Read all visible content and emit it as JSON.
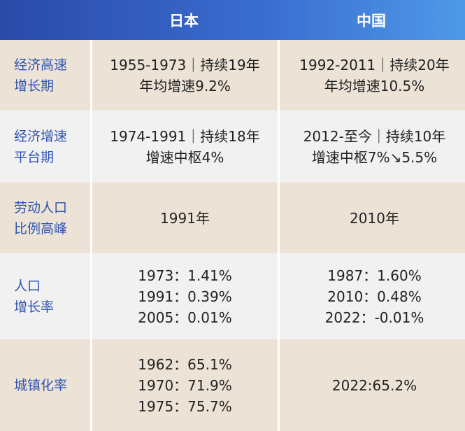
{
  "header": {
    "col1": "日本",
    "col2": "中国"
  },
  "rows": [
    {
      "label": [
        "经济高速",
        "增长期"
      ],
      "japan": [
        "1955-1973｜持续19年",
        "年均增速9.2%"
      ],
      "china": [
        "1992-2011｜持续20年",
        "年均增速10.5%"
      ]
    },
    {
      "label": [
        "经济增速",
        "平台期"
      ],
      "japan": [
        "1974-1991｜持续18年",
        "增速中枢4%"
      ],
      "china": [
        "2012-至今｜持续10年",
        "增速中枢7%↘5.5%"
      ]
    },
    {
      "label": [
        "劳动人口",
        "比例高峰"
      ],
      "japan": [
        "1991年"
      ],
      "china": [
        "2010年"
      ]
    },
    {
      "label": [
        "人口",
        "增长率"
      ],
      "japan": [
        "1973：1.41%",
        "1991：0.39%",
        "2005：0.01%"
      ],
      "china": [
        "1987：1.60%",
        "2010：0.48%",
        "2022：-0.01%"
      ]
    },
    {
      "label": [
        "城镇化率"
      ],
      "japan": [
        "1962：65.1%",
        "1970：71.9%",
        "1975：75.7%"
      ],
      "china": [
        "2022:65.2%"
      ]
    }
  ]
}
